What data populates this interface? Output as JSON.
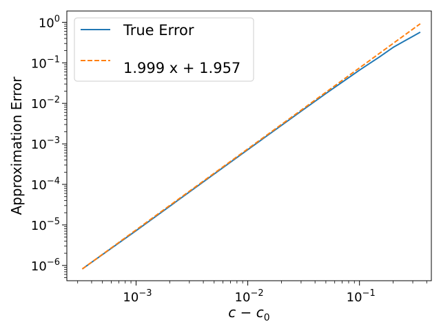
{
  "chart_data": {
    "type": "line",
    "title": "",
    "xlabel": {
      "base": "c",
      "minus": " − ",
      "sub_base": "c",
      "subscript": "0"
    },
    "ylabel": "Approximation Error",
    "x_scale": "log",
    "y_scale": "log",
    "xlim": [
      0.00024,
      0.44
    ],
    "ylim": [
      4.2e-07,
      1.9
    ],
    "x_major_ticks": [
      {
        "value": 0.001,
        "base": "10",
        "exp": "−3"
      },
      {
        "value": 0.01,
        "base": "10",
        "exp": "−2"
      },
      {
        "value": 0.1,
        "base": "10",
        "exp": "−1"
      }
    ],
    "y_major_ticks": [
      {
        "value": 1e-06,
        "base": "10",
        "exp": "−6"
      },
      {
        "value": 1e-05,
        "base": "10",
        "exp": "−5"
      },
      {
        "value": 0.0001,
        "base": "10",
        "exp": "−4"
      },
      {
        "value": 0.001,
        "base": "10",
        "exp": "−3"
      },
      {
        "value": 0.01,
        "base": "10",
        "exp": "−2"
      },
      {
        "value": 0.1,
        "base": "10",
        "exp": "−1"
      },
      {
        "value": 1,
        "base": "10",
        "exp": "0"
      }
    ],
    "grid": false,
    "legend_position": "upper-left",
    "colors": {
      "true_error": "#1f77b4",
      "fit": "#ff7f0e"
    },
    "series": [
      {
        "name": "True Error",
        "style": "solid",
        "x": [
          0.00033,
          0.001,
          0.003,
          0.01,
          0.02,
          0.03,
          0.05,
          0.08,
          0.1,
          0.15,
          0.2,
          0.25,
          0.3,
          0.35
        ],
        "y": [
          8.2e-07,
          7.2e-06,
          6.5e-05,
          0.00072,
          0.00285,
          0.0064,
          0.0175,
          0.043,
          0.066,
          0.138,
          0.24,
          0.34,
          0.45,
          0.57
        ]
      },
      {
        "name": "1.999 x + 1.957",
        "style": "dashed",
        "x": [
          0.00033,
          0.35
        ],
        "y": [
          8.2e-07,
          0.92
        ]
      }
    ]
  }
}
